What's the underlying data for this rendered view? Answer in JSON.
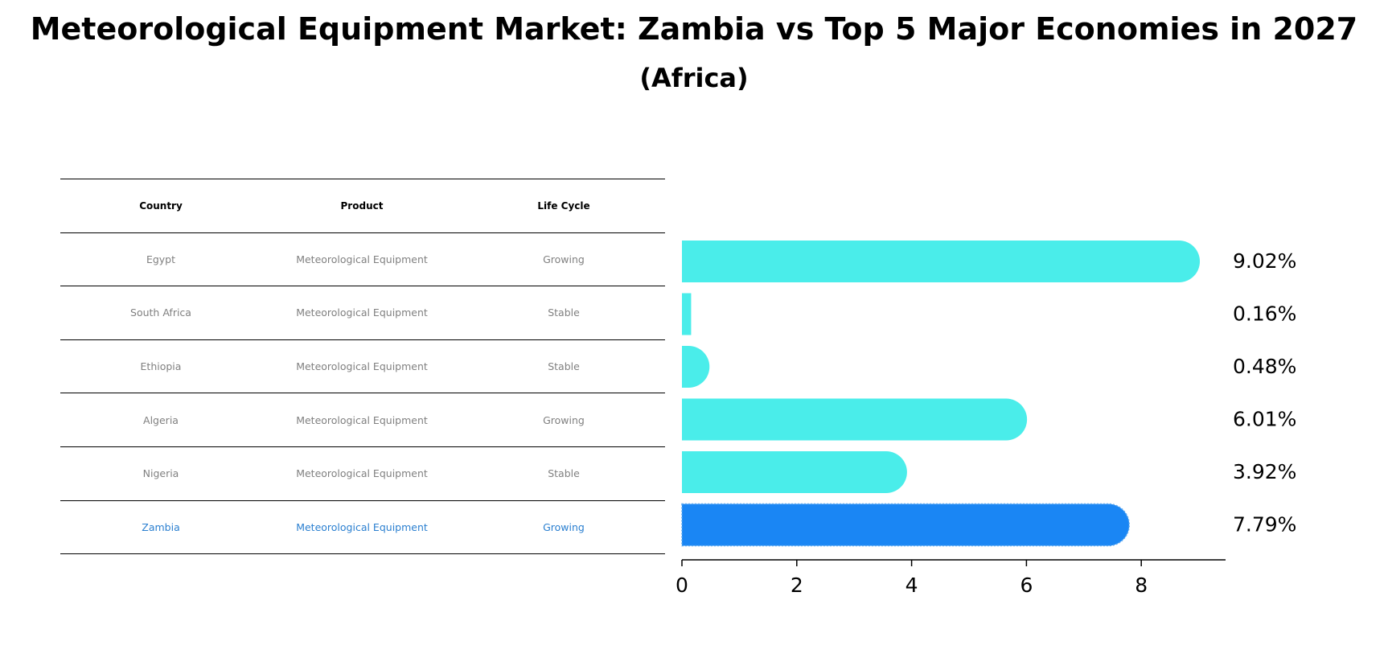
{
  "header": {
    "title": "Meteorological Equipment Market: Zambia vs Top 5 Major Economies in 2027",
    "subtitle": "(Africa)"
  },
  "table": {
    "columns": [
      "Country",
      "Product",
      "Life Cycle"
    ],
    "rows": [
      [
        "Egypt",
        "Meteorological Equipment",
        "Growing"
      ],
      [
        "South Africa",
        "Meteorological Equipment",
        "Stable"
      ],
      [
        "Ethiopia",
        "Meteorological Equipment",
        "Stable"
      ],
      [
        "Algeria",
        "Meteorological Equipment",
        "Growing"
      ],
      [
        "Nigeria",
        "Meteorological Equipment",
        "Stable"
      ],
      [
        "Zambia",
        "Meteorological Equipment",
        "Growing"
      ]
    ],
    "highlight_row": 5
  },
  "chart_data": {
    "type": "bar",
    "orientation": "horizontal",
    "categories": [
      "Egypt",
      "South Africa",
      "Ethiopia",
      "Algeria",
      "Nigeria",
      "Zambia"
    ],
    "values": [
      9.02,
      0.16,
      0.48,
      6.01,
      3.92,
      7.79
    ],
    "value_labels": [
      "9.02%",
      "0.16%",
      "0.48%",
      "6.01%",
      "3.92%",
      "7.79%"
    ],
    "highlight": "Zambia",
    "xlim": [
      0,
      9.5
    ],
    "xticks": [
      0,
      2,
      4,
      6,
      8
    ],
    "xtick_labels": [
      "0",
      "2",
      "4",
      "6",
      "8"
    ],
    "colors": {
      "default": "#4AEDEA",
      "highlight": "#1A86F4"
    }
  }
}
